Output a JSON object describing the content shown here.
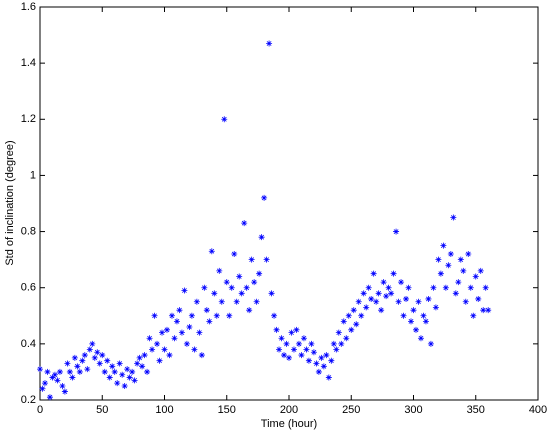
{
  "chart_data": {
    "type": "scatter",
    "xlabel": "Time (hour)",
    "ylabel": "Std of inclination (degree)",
    "color": "#0000ff",
    "xlim": [
      0,
      400
    ],
    "xticks": [
      0,
      50,
      100,
      150,
      200,
      250,
      300,
      350,
      400
    ],
    "ylim": [
      0.2,
      1.6
    ],
    "yticks": [
      0.2,
      0.4,
      0.6,
      0.8,
      1,
      1.2,
      1.4,
      1.6
    ],
    "x": [
      0,
      2,
      4,
      6,
      8,
      10,
      12,
      14,
      16,
      18,
      20,
      22,
      24,
      26,
      28,
      30,
      32,
      34,
      36,
      38,
      40,
      42,
      44,
      46,
      48,
      50,
      52,
      54,
      56,
      58,
      60,
      62,
      64,
      66,
      68,
      70,
      72,
      74,
      76,
      78,
      80,
      82,
      84,
      86,
      88,
      90,
      92,
      94,
      96,
      98,
      100,
      102,
      104,
      106,
      108,
      110,
      112,
      114,
      116,
      118,
      120,
      122,
      124,
      126,
      128,
      130,
      132,
      134,
      136,
      138,
      140,
      142,
      144,
      146,
      148,
      150,
      152,
      154,
      156,
      158,
      160,
      162,
      164,
      166,
      168,
      170,
      172,
      174,
      176,
      178,
      180,
      182,
      184,
      186,
      188,
      190,
      192,
      194,
      196,
      198,
      200,
      202,
      204,
      206,
      208,
      210,
      212,
      214,
      216,
      218,
      220,
      222,
      224,
      226,
      228,
      230,
      232,
      234,
      236,
      238,
      240,
      242,
      244,
      246,
      248,
      250,
      252,
      254,
      256,
      258,
      260,
      262,
      264,
      266,
      268,
      270,
      272,
      274,
      276,
      278,
      280,
      282,
      284,
      286,
      288,
      290,
      292,
      294,
      296,
      298,
      300,
      302,
      304,
      306,
      308,
      310,
      312,
      314,
      316,
      318,
      320,
      322,
      324,
      326,
      328,
      330,
      332,
      334,
      336,
      338,
      340,
      342,
      344,
      346,
      348,
      350,
      352,
      354,
      356,
      358,
      360
    ],
    "y": [
      0.31,
      0.24,
      0.26,
      0.3,
      0.21,
      0.28,
      0.29,
      0.27,
      0.3,
      0.25,
      0.23,
      0.33,
      0.3,
      0.28,
      0.35,
      0.32,
      0.3,
      0.34,
      0.36,
      0.31,
      0.38,
      0.4,
      0.35,
      0.37,
      0.33,
      0.36,
      0.3,
      0.34,
      0.28,
      0.32,
      0.3,
      0.26,
      0.33,
      0.29,
      0.25,
      0.31,
      0.28,
      0.3,
      0.27,
      0.33,
      0.35,
      0.32,
      0.36,
      0.3,
      0.42,
      0.38,
      0.5,
      0.4,
      0.34,
      0.44,
      0.38,
      0.45,
      0.36,
      0.5,
      0.42,
      0.48,
      0.52,
      0.44,
      0.59,
      0.4,
      0.46,
      0.5,
      0.38,
      0.55,
      0.44,
      0.36,
      0.6,
      0.52,
      0.48,
      0.73,
      0.58,
      0.5,
      0.66,
      0.55,
      1.2,
      0.62,
      0.5,
      0.6,
      0.72,
      0.55,
      0.64,
      0.58,
      0.83,
      0.6,
      0.52,
      0.7,
      0.62,
      0.55,
      0.65,
      0.78,
      0.92,
      0.7,
      1.47,
      0.58,
      0.5,
      0.45,
      0.38,
      0.42,
      0.36,
      0.4,
      0.35,
      0.44,
      0.38,
      0.45,
      0.4,
      0.36,
      0.42,
      0.38,
      0.34,
      0.4,
      0.37,
      0.33,
      0.3,
      0.35,
      0.32,
      0.36,
      0.28,
      0.34,
      0.4,
      0.38,
      0.44,
      0.4,
      0.48,
      0.42,
      0.5,
      0.45,
      0.52,
      0.47,
      0.55,
      0.5,
      0.58,
      0.53,
      0.6,
      0.56,
      0.65,
      0.55,
      0.58,
      0.52,
      0.62,
      0.57,
      0.6,
      0.58,
      0.65,
      0.8,
      0.55,
      0.62,
      0.5,
      0.56,
      0.6,
      0.48,
      0.52,
      0.45,
      0.55,
      0.42,
      0.5,
      0.48,
      0.56,
      0.4,
      0.6,
      0.53,
      0.7,
      0.65,
      0.75,
      0.6,
      0.68,
      0.72,
      0.85,
      0.58,
      0.62,
      0.7,
      0.66,
      0.55,
      0.72,
      0.6,
      0.5,
      0.64,
      0.56,
      0.66,
      0.52,
      0.6,
      0.52
    ]
  }
}
